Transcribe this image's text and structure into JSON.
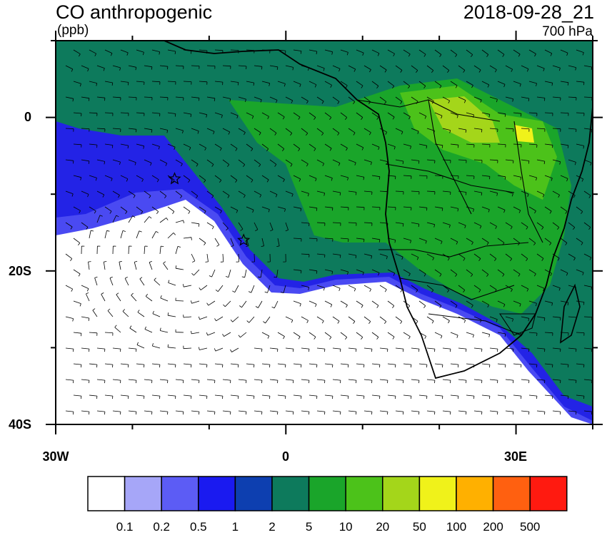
{
  "header": {
    "title": "CO anthropogenic",
    "units": "(ppb)",
    "timestamp": "2018-09-28_21",
    "level": "700 hPa"
  },
  "axes": {
    "lat_labels": [
      "0",
      "20S",
      "40S"
    ],
    "lon_labels": [
      "30W",
      "0",
      "30E"
    ]
  },
  "colorbar": {
    "levels": [
      "0.1",
      "0.2",
      "0.5",
      "1",
      "2",
      "5",
      "10",
      "20",
      "50",
      "100",
      "200",
      "500"
    ],
    "colors": [
      "#ffffff",
      "#a6a6f8",
      "#5c5cf5",
      "#1a1af0",
      "#0d3fb0",
      "#0d7a5c",
      "#1aa52a",
      "#4cc21a",
      "#a4d61a",
      "#f0f21a",
      "#ffb000",
      "#ff6010",
      "#ff1a10"
    ]
  },
  "markers": [
    {
      "name": "star-marker-1",
      "lon": -14.5,
      "lat": -8
    },
    {
      "name": "star-marker-2",
      "lon": -5.5,
      "lat": -16
    }
  ]
}
